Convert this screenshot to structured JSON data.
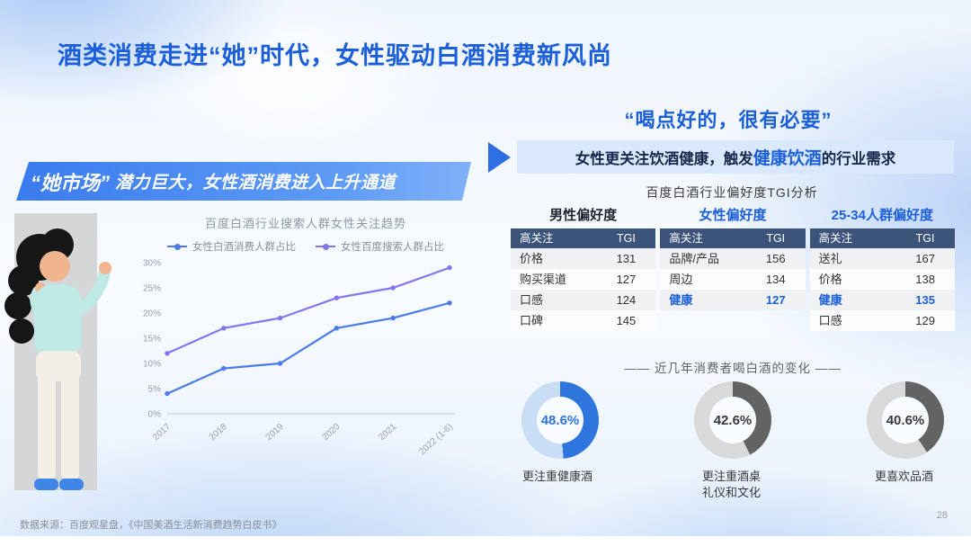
{
  "slide": {
    "title": "酒类消费走进“她”时代，女性驱动白酒消费新风尚",
    "footer": "数据来源：百度观星盘，《中国美酒生活新消费趋势白皮书》",
    "page_number": "28"
  },
  "left_section": {
    "banner_quote": "“她市场”",
    "banner_text": "潜力巨大，女性酒消费进入上升通道",
    "chart_title": "百度白酒行业搜索人群女性关注趋势"
  },
  "right_section": {
    "quote": "“喝点好的，很有必要”",
    "banner": {
      "prefix": "女性更关注饮酒健康，触发",
      "highlight": "健康饮酒",
      "suffix": "的行业需求"
    },
    "table_title": "百度白酒行业偏好度TGI分析",
    "donut_section_title": "—— 近几年消费者喝白酒的变化 ——"
  },
  "table": {
    "header": {
      "col1": "高关注",
      "col2": "TGI"
    },
    "groups": [
      {
        "name": "男性偏好度",
        "name_color": "#1f2430",
        "rows": [
          {
            "label": "价格",
            "tgi": "131"
          },
          {
            "label": "购买渠道",
            "tgi": "127"
          },
          {
            "label": "口感",
            "tgi": "124"
          },
          {
            "label": "口碑",
            "tgi": "145"
          }
        ]
      },
      {
        "name": "女性偏好度",
        "name_color": "#1b5fd9",
        "rows": [
          {
            "label": "品牌/产品",
            "tgi": "156"
          },
          {
            "label": "周边",
            "tgi": "134"
          },
          {
            "label": "健康",
            "tgi": "127",
            "highlight": true
          }
        ]
      },
      {
        "name": "25-34人群偏好度",
        "name_color": "#1b5fd9",
        "rows": [
          {
            "label": "送礼",
            "tgi": "167"
          },
          {
            "label": "价格",
            "tgi": "138"
          },
          {
            "label": "健康",
            "tgi": "135",
            "highlight": true
          },
          {
            "label": "口感",
            "tgi": "129"
          }
        ]
      }
    ]
  },
  "chart_data": [
    {
      "type": "line",
      "title": "百度白酒行业搜索人群女性关注趋势",
      "x": [
        "2017",
        "2018",
        "2019",
        "2020",
        "2021",
        "2022 (1-6)"
      ],
      "series": [
        {
          "name": "女性白酒消费人群占比",
          "color": "#4b7bea",
          "values": [
            4,
            9,
            10,
            17,
            19,
            22
          ]
        },
        {
          "name": "女性百度搜索人群占比",
          "color": "#8176f0",
          "values": [
            12,
            17,
            19,
            23,
            25,
            29
          ]
        }
      ],
      "xlabel": "",
      "ylabel": "",
      "ylim": [
        0,
        30
      ],
      "yticks": [
        0,
        5,
        10,
        15,
        20,
        25,
        30
      ],
      "grid": false,
      "legend_position": "top"
    },
    {
      "type": "pie",
      "title": "近几年消费者喝白酒的变化",
      "items": [
        {
          "label": "更注重健康酒",
          "value": 48.6,
          "display": "48.6%",
          "color": "#2e75dd",
          "track_color": "#c9ddf4",
          "text_color": "#2e75dd"
        },
        {
          "label": "更注重酒桌礼仪和文化",
          "value": 42.6,
          "display": "42.6%",
          "color": "#636363",
          "track_color": "#d9d9d9",
          "text_color": "#3a3a3a"
        },
        {
          "label": "更喜欢品酒",
          "value": 40.6,
          "display": "40.6%",
          "color": "#636363",
          "track_color": "#d9d9d9",
          "text_color": "#3a3a3a"
        }
      ]
    }
  ],
  "colors": {
    "accent_blue": "#1b5fd9",
    "table_header_bg": "#3c537a",
    "banner_gradient_start": "#3a7bee",
    "banner_gradient_end": "#7fb1f8"
  }
}
